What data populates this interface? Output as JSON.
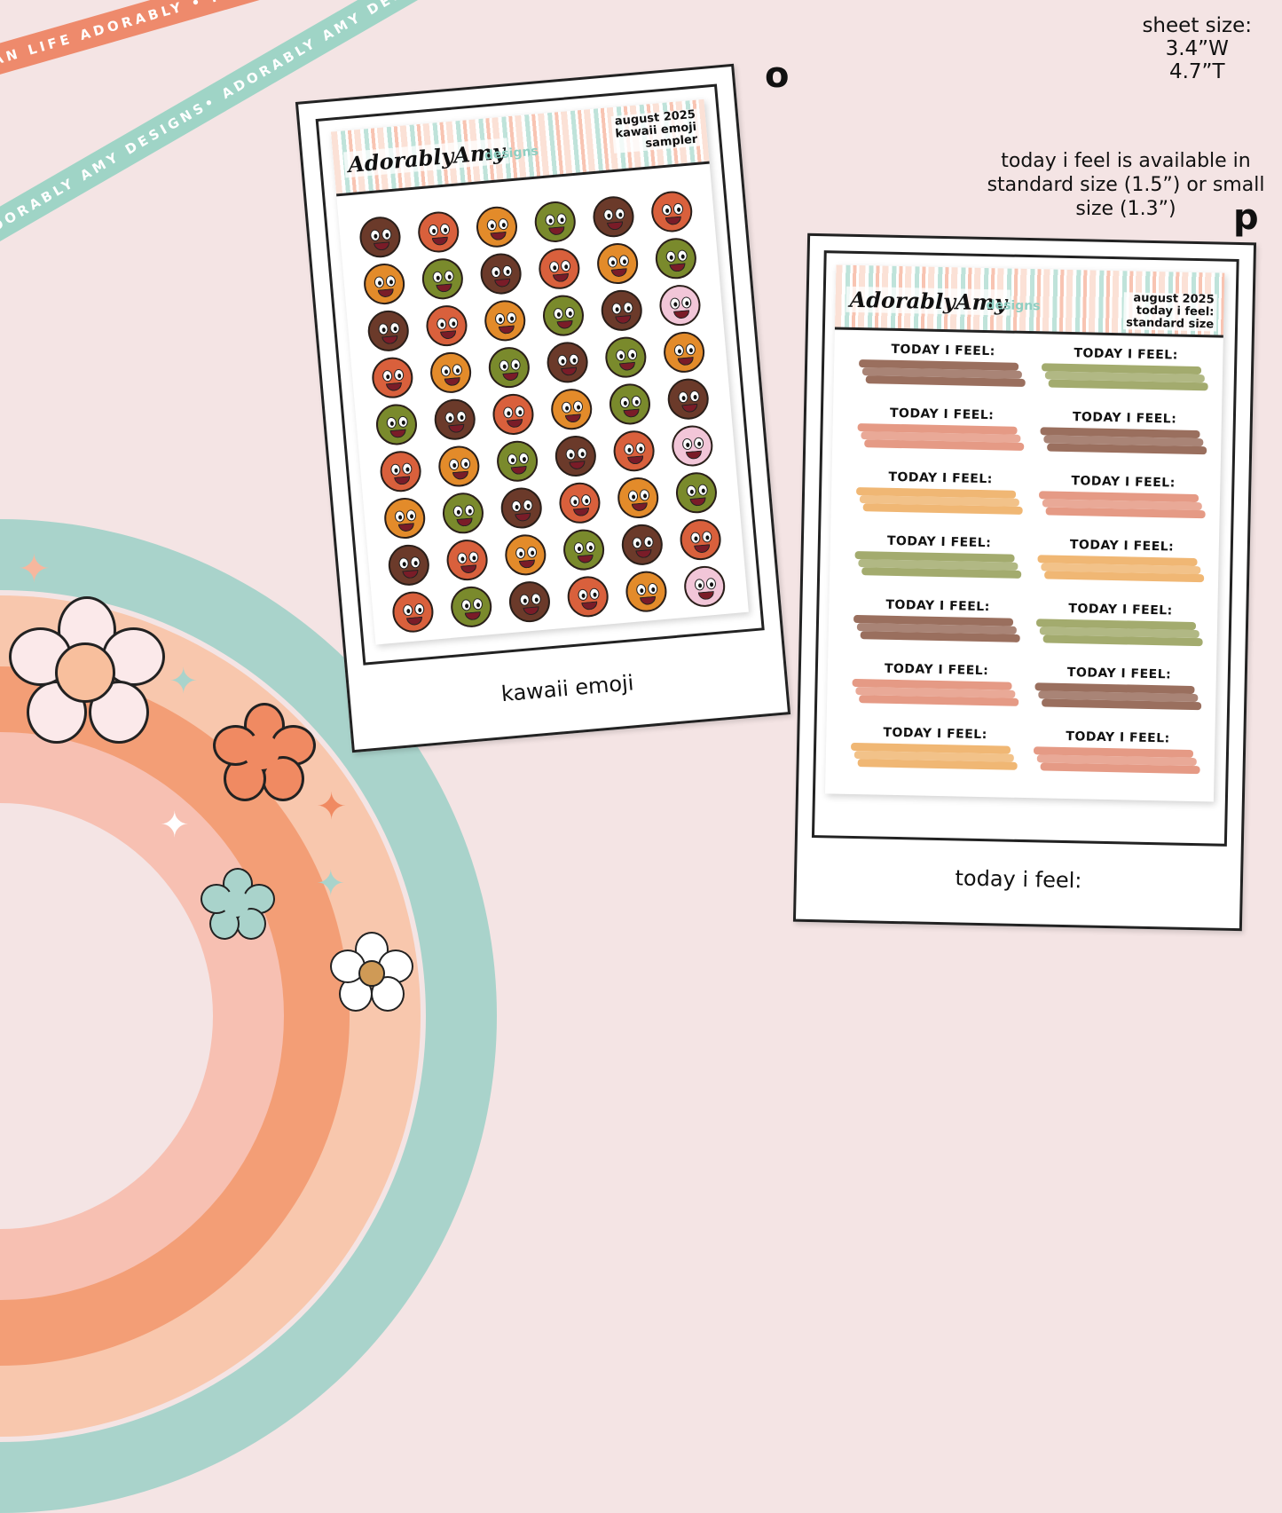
{
  "ribbons": {
    "coral_text": "PLAN LIFE ADORABLY • PLAN LIFE ADORABLY • PLAN LIFE ADORABLY • PLAN LIFE ADORABLY •",
    "teal_text": "ADORABLY AMY DESIGNS• ADORABLY AMY DESIGNS• ADORABLY AMY DESIGNS• ADORABLY AMY DESIGNS•"
  },
  "sheet_info": {
    "line1": "sheet size:",
    "line2": "3.4”W",
    "line3": "4.7”T"
  },
  "availability_note": "today i feel is available in standard size (1.5”) or small size (1.3”)",
  "panel_o": {
    "letter": "o",
    "brand": "AdorablyAmy",
    "brand2": "designs",
    "header_line1": "august 2025",
    "header_line2": "kawaii emoji",
    "header_line3": "sampler",
    "caption": "kawaii emoji",
    "emoji_colors": [
      "#6b3a2a",
      "#d9603c",
      "#e38b2a",
      "#7a8a2c",
      "#6b3a2a",
      "#d9603c",
      "#e38b2a",
      "#7a8a2c",
      "#6b3a2a",
      "#d9603c",
      "#e38b2a",
      "#7a8a2c",
      "#6b3a2a",
      "#d9603c",
      "#e38b2a",
      "#7a8a2c",
      "#6b3a2a",
      "#f2c6d8",
      "#d9603c",
      "#e38b2a",
      "#7a8a2c",
      "#6b3a2a",
      "#7a8a2c",
      "#e38b2a",
      "#7a8a2c",
      "#6b3a2a",
      "#d9603c",
      "#e38b2a",
      "#7a8a2c",
      "#6b3a2a",
      "#d9603c",
      "#e38b2a",
      "#7a8a2c",
      "#6b3a2a",
      "#d9603c",
      "#f2c6d8",
      "#e38b2a",
      "#7a8a2c",
      "#6b3a2a",
      "#d9603c",
      "#e38b2a",
      "#7a8a2c",
      "#6b3a2a",
      "#d9603c",
      "#e38b2a",
      "#7a8a2c",
      "#6b3a2a",
      "#d9603c",
      "#d9603c",
      "#7a8a2c",
      "#6b3a2a",
      "#d9603c",
      "#e38b2a",
      "#f2c6d8"
    ]
  },
  "panel_p": {
    "letter": "p",
    "brand": "AdorablyAmy",
    "brand2": "designs",
    "header_line1": "august 2025",
    "header_line2": "today i feel:",
    "header_line3": "standard size",
    "caption": "today i feel:",
    "item_label": "TODAY I FEEL:",
    "left_colors": [
      "#9a6f5e",
      "#e59a85",
      "#f0b774",
      "#a3ab6e",
      "#9a6f5e",
      "#e59a85",
      "#f0b774"
    ],
    "right_colors": [
      "#a3ab6e",
      "#9a6f5e",
      "#e59a85",
      "#f0b774",
      "#a3ab6e",
      "#9a6f5e",
      "#e59a85"
    ]
  },
  "colors": {
    "background": "#f4e4e4",
    "coral": "#ee8a6c",
    "teal": "#9fd4c6",
    "peach": "#f8b495",
    "orange": "#f39a72",
    "pink": "#efcfcf"
  }
}
